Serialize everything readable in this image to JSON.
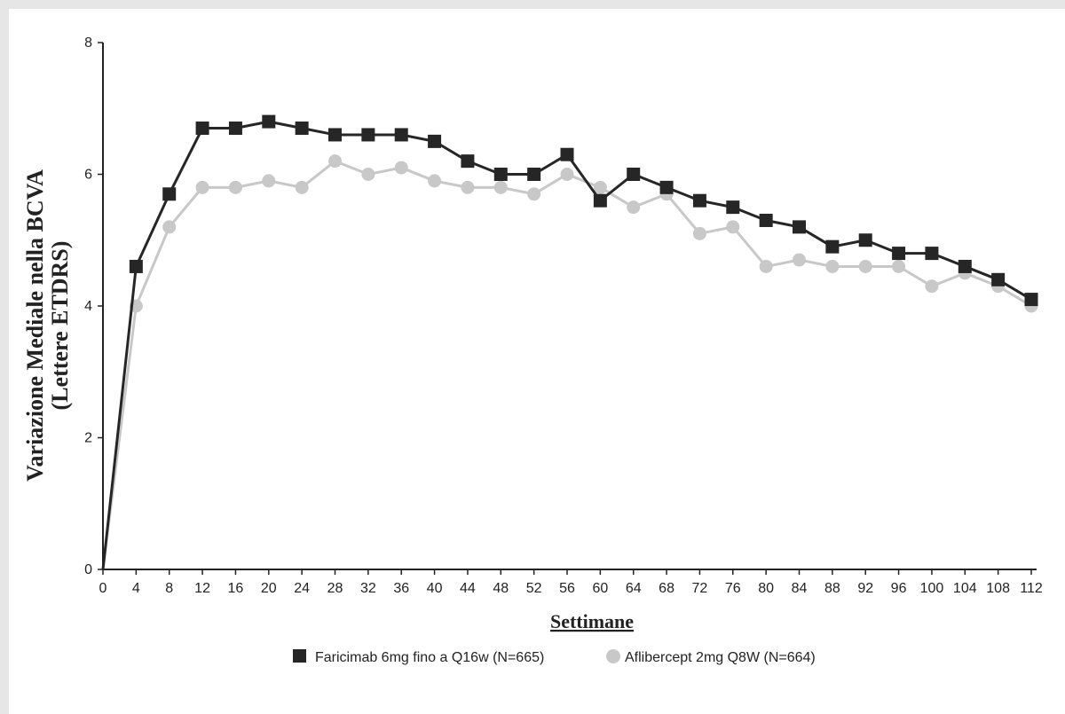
{
  "chart_data": {
    "type": "line",
    "xlabel": "Settimane",
    "ylabel_lines": [
      "Variazione Mediale nella  BCVA",
      "(Lettere ETDRS)"
    ],
    "xlim": [
      0,
      112
    ],
    "ylim": [
      0,
      8
    ],
    "x_ticks": [
      0,
      4,
      8,
      12,
      16,
      20,
      24,
      28,
      32,
      36,
      40,
      44,
      48,
      52,
      56,
      60,
      64,
      68,
      72,
      76,
      80,
      84,
      88,
      92,
      96,
      100,
      104,
      108,
      112
    ],
    "y_ticks": [
      0,
      2,
      4,
      6,
      8
    ],
    "grid": false,
    "legend_position": "bottom",
    "x": [
      0,
      4,
      8,
      12,
      16,
      20,
      24,
      28,
      32,
      36,
      40,
      44,
      48,
      52,
      56,
      60,
      64,
      68,
      72,
      76,
      80,
      84,
      88,
      92,
      96,
      100,
      104,
      108,
      112
    ],
    "series": [
      {
        "name": "Faricimab 6mg fino a Q16w (N=665)",
        "marker": "square",
        "color": "#262626",
        "values": [
          0,
          4.6,
          5.7,
          6.7,
          6.7,
          6.8,
          6.7,
          6.6,
          6.6,
          6.6,
          6.5,
          6.2,
          6.0,
          6.0,
          6.3,
          5.6,
          6.0,
          5.8,
          5.6,
          5.5,
          5.3,
          5.2,
          4.9,
          5.0,
          4.8,
          4.8,
          4.6,
          4.4,
          4.1
        ]
      },
      {
        "name": "Aflibercept 2mg Q8W (N=664)",
        "marker": "circle",
        "color": "#c8c8c8",
        "values": [
          0,
          4.0,
          5.2,
          5.8,
          5.8,
          5.9,
          5.8,
          6.2,
          6.0,
          6.1,
          5.9,
          5.8,
          5.8,
          5.7,
          6.0,
          5.8,
          5.5,
          5.7,
          5.1,
          5.2,
          4.6,
          4.7,
          4.6,
          4.6,
          4.6,
          4.3,
          4.5,
          4.3,
          4.0
        ]
      }
    ]
  }
}
